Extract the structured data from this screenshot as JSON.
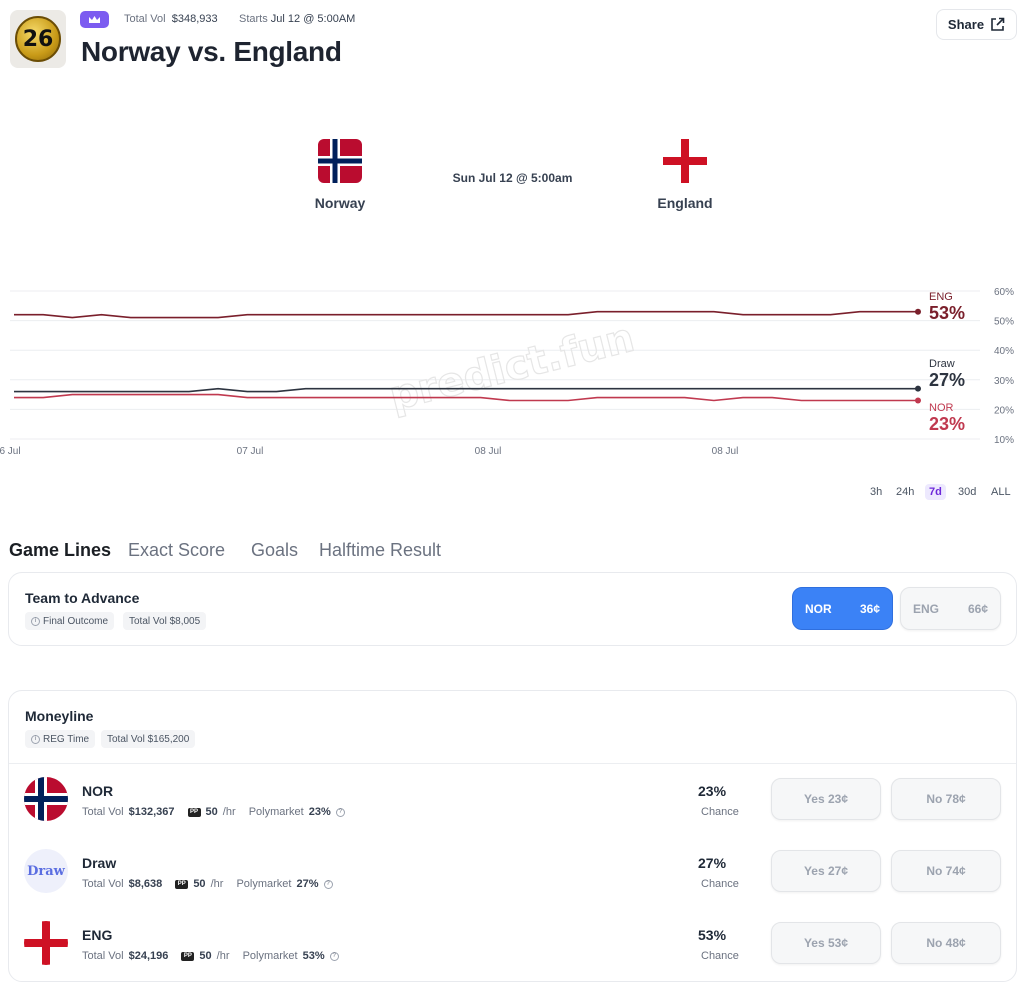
{
  "header": {
    "logo_text": "26",
    "total_vol_label": "Total Vol",
    "total_vol_value": "$348,933",
    "starts_label": "Starts",
    "starts_value": "Jul 12 @ 5:00AM",
    "title": "Norway vs. England",
    "share_label": "Share"
  },
  "matchup": {
    "home": "Norway",
    "away": "England",
    "date": "Sun Jul 12 @ 5:00am"
  },
  "chart_data": {
    "type": "line",
    "x_tick_labels": [
      "6 Jul",
      "07 Jul",
      "08 Jul",
      "08 Jul"
    ],
    "y_tick_labels": [
      "60%",
      "50%",
      "40%",
      "30%",
      "20%",
      "10%"
    ],
    "ylim": [
      10,
      60
    ],
    "watermark": "predict.fun",
    "series": [
      {
        "name": "ENG",
        "color": "#7a1f2b",
        "end_label": "53%",
        "values": [
          52,
          52,
          51,
          52,
          51,
          51,
          51,
          51,
          52,
          52,
          52,
          52,
          52,
          52,
          52,
          52,
          52,
          52,
          52,
          52,
          53,
          53,
          53,
          53,
          53,
          52,
          52,
          52,
          52,
          53,
          53,
          53
        ]
      },
      {
        "name": "Draw",
        "color": "#2d3440",
        "end_label": "27%",
        "values": [
          26,
          26,
          26,
          26,
          26,
          26,
          26,
          27,
          26,
          26,
          27,
          27,
          27,
          27,
          27,
          27,
          27,
          27,
          27,
          27,
          27,
          27,
          27,
          27,
          27,
          27,
          27,
          27,
          27,
          27,
          27,
          27
        ]
      },
      {
        "name": "NOR",
        "color": "#c0394f",
        "end_label": "23%",
        "values": [
          24,
          24,
          25,
          25,
          25,
          25,
          25,
          25,
          24,
          24,
          24,
          24,
          24,
          24,
          24,
          24,
          24,
          23,
          23,
          23,
          24,
          24,
          24,
          24,
          23,
          24,
          24,
          23,
          23,
          23,
          23,
          23
        ]
      }
    ]
  },
  "timeframes": {
    "items": [
      "3h",
      "24h",
      "7d",
      "30d",
      "ALL"
    ],
    "active": "7d"
  },
  "tabs": [
    "Game Lines",
    "Exact Score",
    "Goals",
    "Halftime Result"
  ],
  "advance": {
    "title": "Team to Advance",
    "chip1": "Final Outcome",
    "chip2": "Total Vol $8,005",
    "btn1_label": "NOR",
    "btn1_value": "36¢",
    "btn2_label": "ENG",
    "btn2_value": "66¢"
  },
  "moneyline": {
    "title": "Moneyline",
    "chip1": "REG Time",
    "chip2": "Total Vol $165,200",
    "vol_label": "Total Vol",
    "rate_unit": "/hr",
    "poly_label": "Polymarket",
    "chance_label": "Chance",
    "rows": [
      {
        "name": "NOR",
        "vol": "$132,367",
        "rate": "50",
        "poly": "23%",
        "pct": "23%",
        "yes": "Yes 23¢",
        "no": "No 78¢"
      },
      {
        "name": "Draw",
        "avatar_text": "Draw",
        "vol": "$8,638",
        "rate": "50",
        "poly": "27%",
        "pct": "27%",
        "yes": "Yes 27¢",
        "no": "No 74¢"
      },
      {
        "name": "ENG",
        "vol": "$24,196",
        "rate": "50",
        "poly": "53%",
        "pct": "53%",
        "yes": "Yes 53¢",
        "no": "No 48¢"
      }
    ]
  }
}
